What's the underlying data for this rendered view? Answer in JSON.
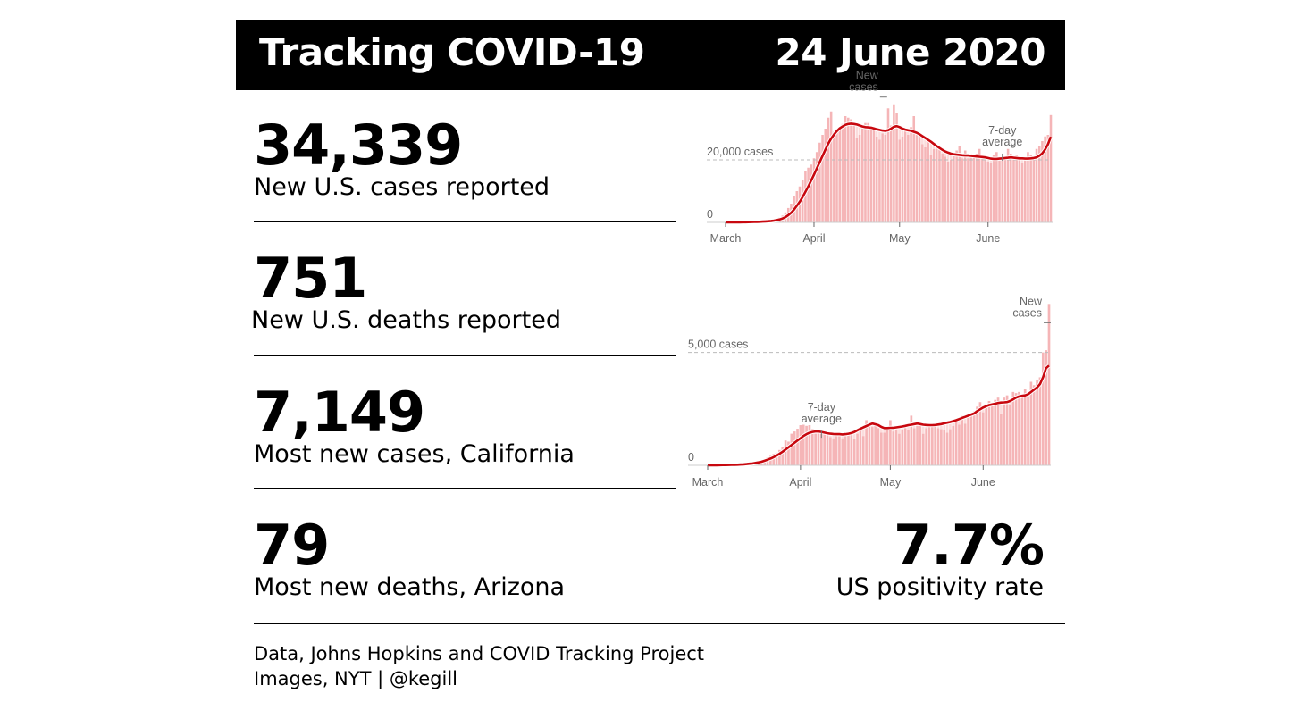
{
  "header": {
    "title": "Tracking COVID-19",
    "date": "24 June 2020"
  },
  "stats": [
    {
      "value": "34,339",
      "label": "New U.S. cases reported"
    },
    {
      "value": "751",
      "label": "New U.S. deaths reported"
    },
    {
      "value": "7,149",
      "label": "Most new cases, California"
    },
    {
      "value": "79",
      "label": "Most new deaths, Arizona"
    }
  ],
  "positivity": {
    "value": "7.7%",
    "label": "US positivity rate"
  },
  "footer": {
    "line1": "Data, Johns Hopkins and COVID Tracking Project",
    "line2": "Images, NYT | @kegill"
  },
  "colors": {
    "bar": "#f5b5b7",
    "bar_above_avg": "#fbdcdc",
    "avg_line": "#c8080f",
    "gridline": "#bbbbbb",
    "axis_text": "#666666"
  },
  "chart_data": [
    {
      "type": "bar",
      "title": "",
      "subject": "U.S. new cases",
      "xlabel": "",
      "ylabel": "",
      "x_ticks": [
        "March",
        "April",
        "May",
        "June"
      ],
      "x_tick_days": [
        0,
        31,
        61,
        92
      ],
      "y_ticks": [
        {
          "value": 0,
          "label": "0"
        },
        {
          "value": 20000,
          "label": "20,000 cases"
        }
      ],
      "ylim": [
        0,
        40000
      ],
      "days": 115,
      "annotations": [
        {
          "text": [
            "New",
            "cases"
          ],
          "day": 56,
          "value": 37800
        },
        {
          "text": [
            "7-day",
            "average"
          ],
          "day": 97,
          "value": 20300
        }
      ],
      "series": [
        {
          "name": "New cases",
          "values": [
            0,
            0,
            10,
            20,
            30,
            40,
            60,
            80,
            100,
            120,
            150,
            200,
            250,
            300,
            400,
            500,
            650,
            800,
            1200,
            1600,
            2200,
            3200,
            4600,
            6000,
            8500,
            10000,
            11500,
            13500,
            16500,
            17500,
            18500,
            20500,
            22500,
            25500,
            28000,
            30000,
            33500,
            35500,
            29000,
            29800,
            29500,
            31500,
            34000,
            33500,
            33000,
            31000,
            27000,
            28000,
            30000,
            31800,
            31800,
            30800,
            29500,
            27500,
            26500,
            28500,
            28000,
            36500,
            31000,
            37500,
            35000,
            26500,
            27500,
            29500,
            28000,
            30500,
            34000,
            29000,
            27500,
            25000,
            24000,
            26500,
            21500,
            23500,
            25000,
            23500,
            22000,
            21000,
            19500,
            20000,
            21500,
            23000,
            24500,
            20500,
            23000,
            20500,
            22000,
            21500,
            22000,
            23500,
            20500,
            20000,
            19500,
            19000,
            21500,
            22500,
            21000,
            20500,
            21000,
            23500,
            22000,
            20500,
            21500,
            21000,
            19000,
            21000,
            22500,
            21500,
            20500,
            23500,
            24500,
            26000,
            27500,
            28000,
            34339
          ]
        },
        {
          "name": "7-day average",
          "values": [
            0,
            0,
            10,
            20,
            30,
            40,
            55,
            70,
            90,
            110,
            130,
            160,
            200,
            250,
            300,
            380,
            470,
            580,
            740,
            950,
            1250,
            1700,
            2300,
            3100,
            4100,
            5300,
            6600,
            8100,
            9800,
            11500,
            13400,
            15300,
            17300,
            19300,
            21300,
            23300,
            25200,
            26800,
            28100,
            29200,
            30100,
            30700,
            31200,
            31500,
            31600,
            31500,
            31300,
            31000,
            30700,
            30500,
            30400,
            30300,
            30100,
            29800,
            29600,
            29400,
            29300,
            29500,
            30000,
            30600,
            30800,
            30500,
            30000,
            29700,
            29500,
            29300,
            29000,
            28700,
            28200,
            27600,
            27000,
            26400,
            25800,
            25100,
            24400,
            23800,
            23200,
            22700,
            22300,
            22000,
            21800,
            21700,
            21600,
            21500,
            21400,
            21400,
            21300,
            21200,
            21100,
            21000,
            20900,
            20800,
            20600,
            20400,
            20300,
            20300,
            20400,
            20500,
            20600,
            20700,
            20800,
            20700,
            20600,
            20500,
            20500,
            20400,
            20400,
            20500,
            20600,
            20800,
            21300,
            22100,
            23300,
            25000,
            27400
          ]
        }
      ]
    },
    {
      "type": "bar",
      "title": "",
      "subject": "California new cases",
      "xlabel": "",
      "ylabel": "",
      "x_ticks": [
        "March",
        "April",
        "May",
        "June"
      ],
      "x_tick_days": [
        0,
        31,
        61,
        92
      ],
      "y_ticks": [
        {
          "value": 0,
          "label": "0"
        },
        {
          "value": 5000,
          "label": "5,000 cases"
        }
      ],
      "ylim": [
        0,
        5500
      ],
      "days": 115,
      "annotations": [
        {
          "text": [
            "7-day",
            "average"
          ],
          "day": 38,
          "value": 1300
        },
        {
          "text": [
            "New",
            "cases"
          ],
          "day": 114,
          "value": 6000
        }
      ],
      "series": [
        {
          "name": "New cases",
          "values": [
            0,
            0,
            5,
            5,
            10,
            10,
            15,
            20,
            25,
            30,
            40,
            50,
            60,
            80,
            100,
            120,
            150,
            180,
            220,
            280,
            350,
            420,
            500,
            560,
            680,
            830,
            1100,
            1050,
            1400,
            1500,
            1620,
            1780,
            1800,
            1750,
            1780,
            1600,
            1400,
            1450,
            1500,
            1400,
            1450,
            1250,
            1200,
            1350,
            1300,
            1200,
            1300,
            1400,
            1350,
            1150,
            1400,
            1550,
            1300,
            2000,
            1800,
            1700,
            1750,
            1650,
            1450,
            1450,
            1550,
            2000,
            1500,
            1650,
            1400,
            1550,
            1650,
            1550,
            2200,
            1650,
            1750,
            1800,
            1400,
            1650,
            1700,
            1800,
            1750,
            1650,
            1600,
            1550,
            1450,
            1600,
            1750,
            1900,
            1800,
            2200,
            1850,
            2100,
            2300,
            2400,
            2600,
            2800,
            2350,
            2700,
            2850,
            2750,
            2900,
            3000,
            2300,
            3000,
            3100,
            2700,
            3250,
            3200,
            3250,
            3050,
            3400,
            3050,
            3700,
            3550,
            3800,
            3900,
            5000,
            5100,
            7149
          ]
        },
        {
          "name": "7-day average",
          "values": [
            0,
            0,
            5,
            5,
            8,
            10,
            12,
            15,
            18,
            22,
            28,
            35,
            45,
            55,
            70,
            85,
            105,
            130,
            160,
            200,
            250,
            300,
            360,
            430,
            510,
            600,
            700,
            800,
            900,
            1000,
            1100,
            1200,
            1300,
            1380,
            1440,
            1480,
            1500,
            1500,
            1480,
            1450,
            1420,
            1400,
            1390,
            1380,
            1380,
            1370,
            1380,
            1400,
            1430,
            1480,
            1550,
            1620,
            1680,
            1740,
            1800,
            1850,
            1820,
            1780,
            1700,
            1650,
            1650,
            1660,
            1660,
            1680,
            1700,
            1720,
            1750,
            1780,
            1800,
            1830,
            1850,
            1830,
            1800,
            1790,
            1780,
            1780,
            1790,
            1810,
            1830,
            1860,
            1890,
            1920,
            1960,
            2000,
            2050,
            2100,
            2150,
            2200,
            2250,
            2300,
            2400,
            2480,
            2560,
            2620,
            2670,
            2700,
            2730,
            2760,
            2780,
            2790,
            2800,
            2850,
            2920,
            3000,
            3050,
            3080,
            3100,
            3150,
            3250,
            3350,
            3450,
            3600,
            3900,
            4300,
            4420
          ]
        }
      ]
    }
  ]
}
